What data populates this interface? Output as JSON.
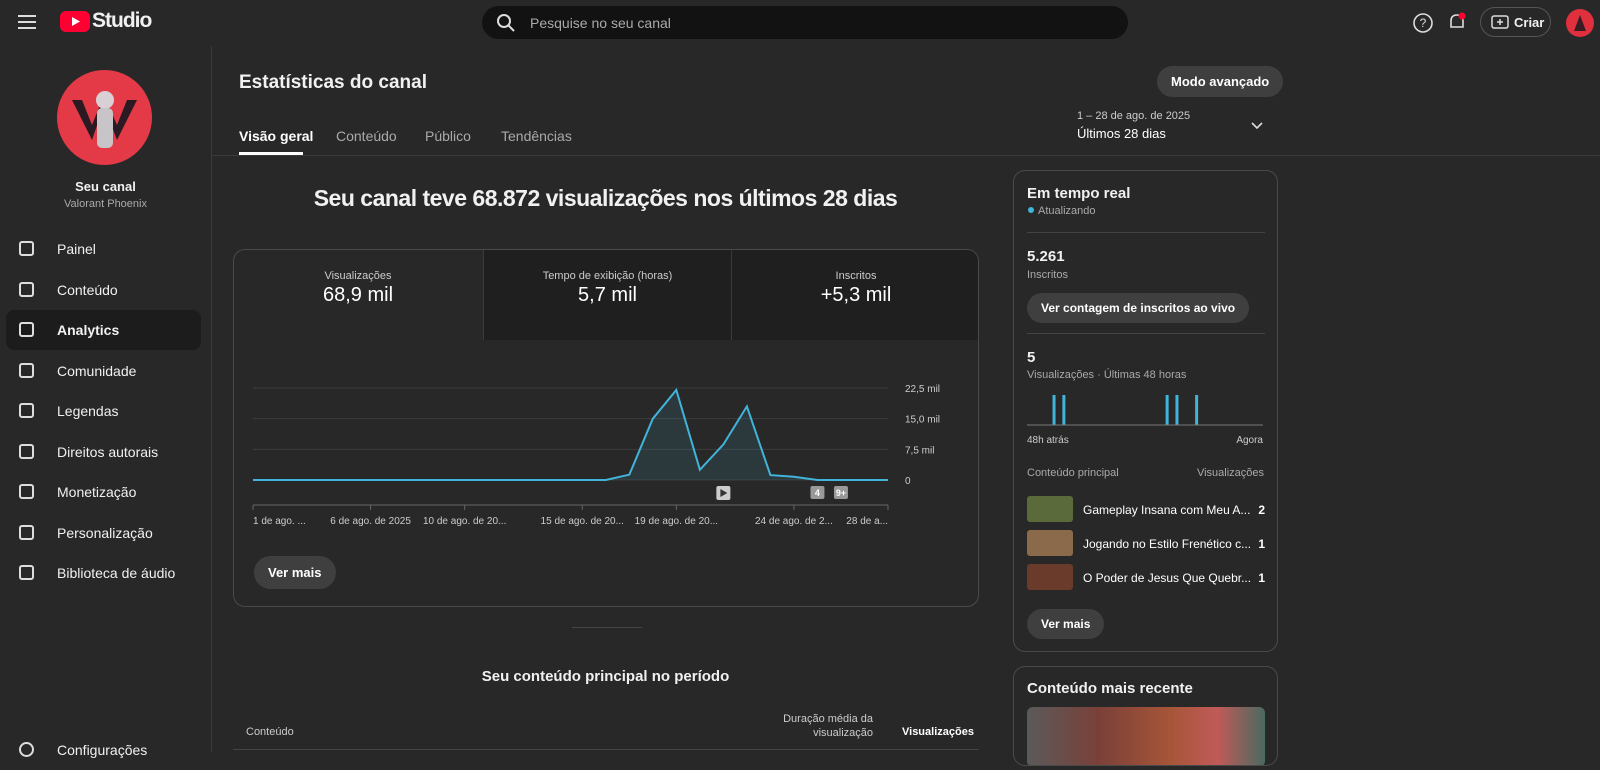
{
  "header": {
    "logo": "Studio",
    "search_placeholder": "Pesquise no seu canal",
    "create": "Criar"
  },
  "sidebar": {
    "channel_title": "Seu canal",
    "channel_name": "Valorant Phoenix",
    "nav": [
      "Painel",
      "Conteúdo",
      "Analytics",
      "Comunidade",
      "Legendas",
      "Direitos autorais",
      "Monetização",
      "Personalização",
      "Biblioteca de áudio"
    ],
    "settings": "Configurações"
  },
  "page": {
    "title": "Estatísticas do canal",
    "advanced_mode": "Modo avançado",
    "tabs": [
      "Visão geral",
      "Conteúdo",
      "Público",
      "Tendências"
    ],
    "date_range": "1 – 28 de ago. de 2025",
    "period": "Últimos 28 dias"
  },
  "summary": {
    "headline": "Seu canal teve 68.872 visualizações nos últimos 28 dias",
    "metrics": [
      {
        "label": "Visualizações",
        "value": "68,9 mil"
      },
      {
        "label": "Tempo de exibição (horas)",
        "value": "5,7 mil"
      },
      {
        "label": "Inscritos",
        "value": "+5,3 mil"
      }
    ],
    "see_more": "Ver mais"
  },
  "chart_data": [
    {
      "type": "line",
      "color": "#41b4d9",
      "grid": true,
      "categories": [
        "1 de ago. ...",
        null,
        null,
        null,
        null,
        "6 de ago. de 2025",
        null,
        null,
        null,
        "10 de ago. de 20...",
        null,
        null,
        null,
        null,
        "15 de ago. de 20...",
        null,
        null,
        null,
        "19 de ago. de 20...",
        null,
        null,
        null,
        null,
        "24 de ago. de 2...",
        null,
        null,
        null,
        "28 de a..."
      ],
      "values": [
        0,
        0,
        0,
        0,
        0,
        0,
        0,
        0,
        0,
        0,
        0,
        0,
        0,
        0,
        0,
        0,
        1300,
        15000,
        22000,
        2500,
        8700,
        18000,
        1200,
        800,
        0,
        0,
        0,
        0
      ],
      "ylim": [
        0,
        22500
      ],
      "yticks": [
        0,
        {
          "value": 7500,
          "label": "7,5 mil"
        },
        {
          "value": 15000,
          "label": "15,0 mil"
        },
        {
          "value": 22500,
          "label": "22,5 mil"
        }
      ],
      "annotations": [
        "4",
        "9+"
      ]
    },
    {
      "type": "bar",
      "color": "#41b4d9",
      "categories": [
        "48h atrás",
        null,
        null,
        null,
        null,
        null,
        null,
        null,
        null,
        null,
        null,
        null,
        null,
        null,
        null,
        null,
        null,
        null,
        null,
        null,
        null,
        null,
        null,
        null,
        null,
        null,
        null,
        null,
        null,
        null,
        null,
        null,
        null,
        null,
        null,
        null,
        null,
        null,
        null,
        null,
        null,
        null,
        null,
        null,
        null,
        null,
        null,
        "Agora"
      ],
      "values": [
        0,
        0,
        0,
        0,
        0,
        1,
        0,
        1,
        0,
        0,
        0,
        0,
        0,
        0,
        0,
        0,
        0,
        0,
        0,
        0,
        0,
        0,
        0,
        0,
        0,
        0,
        0,
        0,
        1,
        0,
        1,
        0,
        0,
        0,
        1,
        0,
        0,
        0,
        0,
        0,
        0,
        0,
        0,
        0,
        0,
        0,
        0,
        0
      ],
      "ylim": [
        0,
        1
      ]
    }
  ],
  "realtime": {
    "title": "Em tempo real",
    "status": "Atualizando",
    "subscribers": "5.261",
    "subscribers_label": "Inscritos",
    "live_count_button": "Ver contagem de inscritos ao vivo",
    "views": "5",
    "views_label": "Visualizações · Últimas 48 horas",
    "top_content_header": "Conteúdo principal",
    "top_content_metric": "Visualizações",
    "top_content": [
      {
        "title": "Gameplay Insana com Meu A...",
        "views": "2"
      },
      {
        "title": "Jogando no Estilo Frenético c...",
        "views": "1"
      },
      {
        "title": "O Poder de Jesus Que Quebr...",
        "views": "1"
      }
    ],
    "see_more": "Ver mais"
  },
  "latest": {
    "title": "Conteúdo mais recente"
  },
  "top_period": {
    "title": "Seu conteúdo principal no período",
    "columns": [
      "Conteúdo",
      "Duração média da visualização",
      "Visualizações"
    ]
  }
}
